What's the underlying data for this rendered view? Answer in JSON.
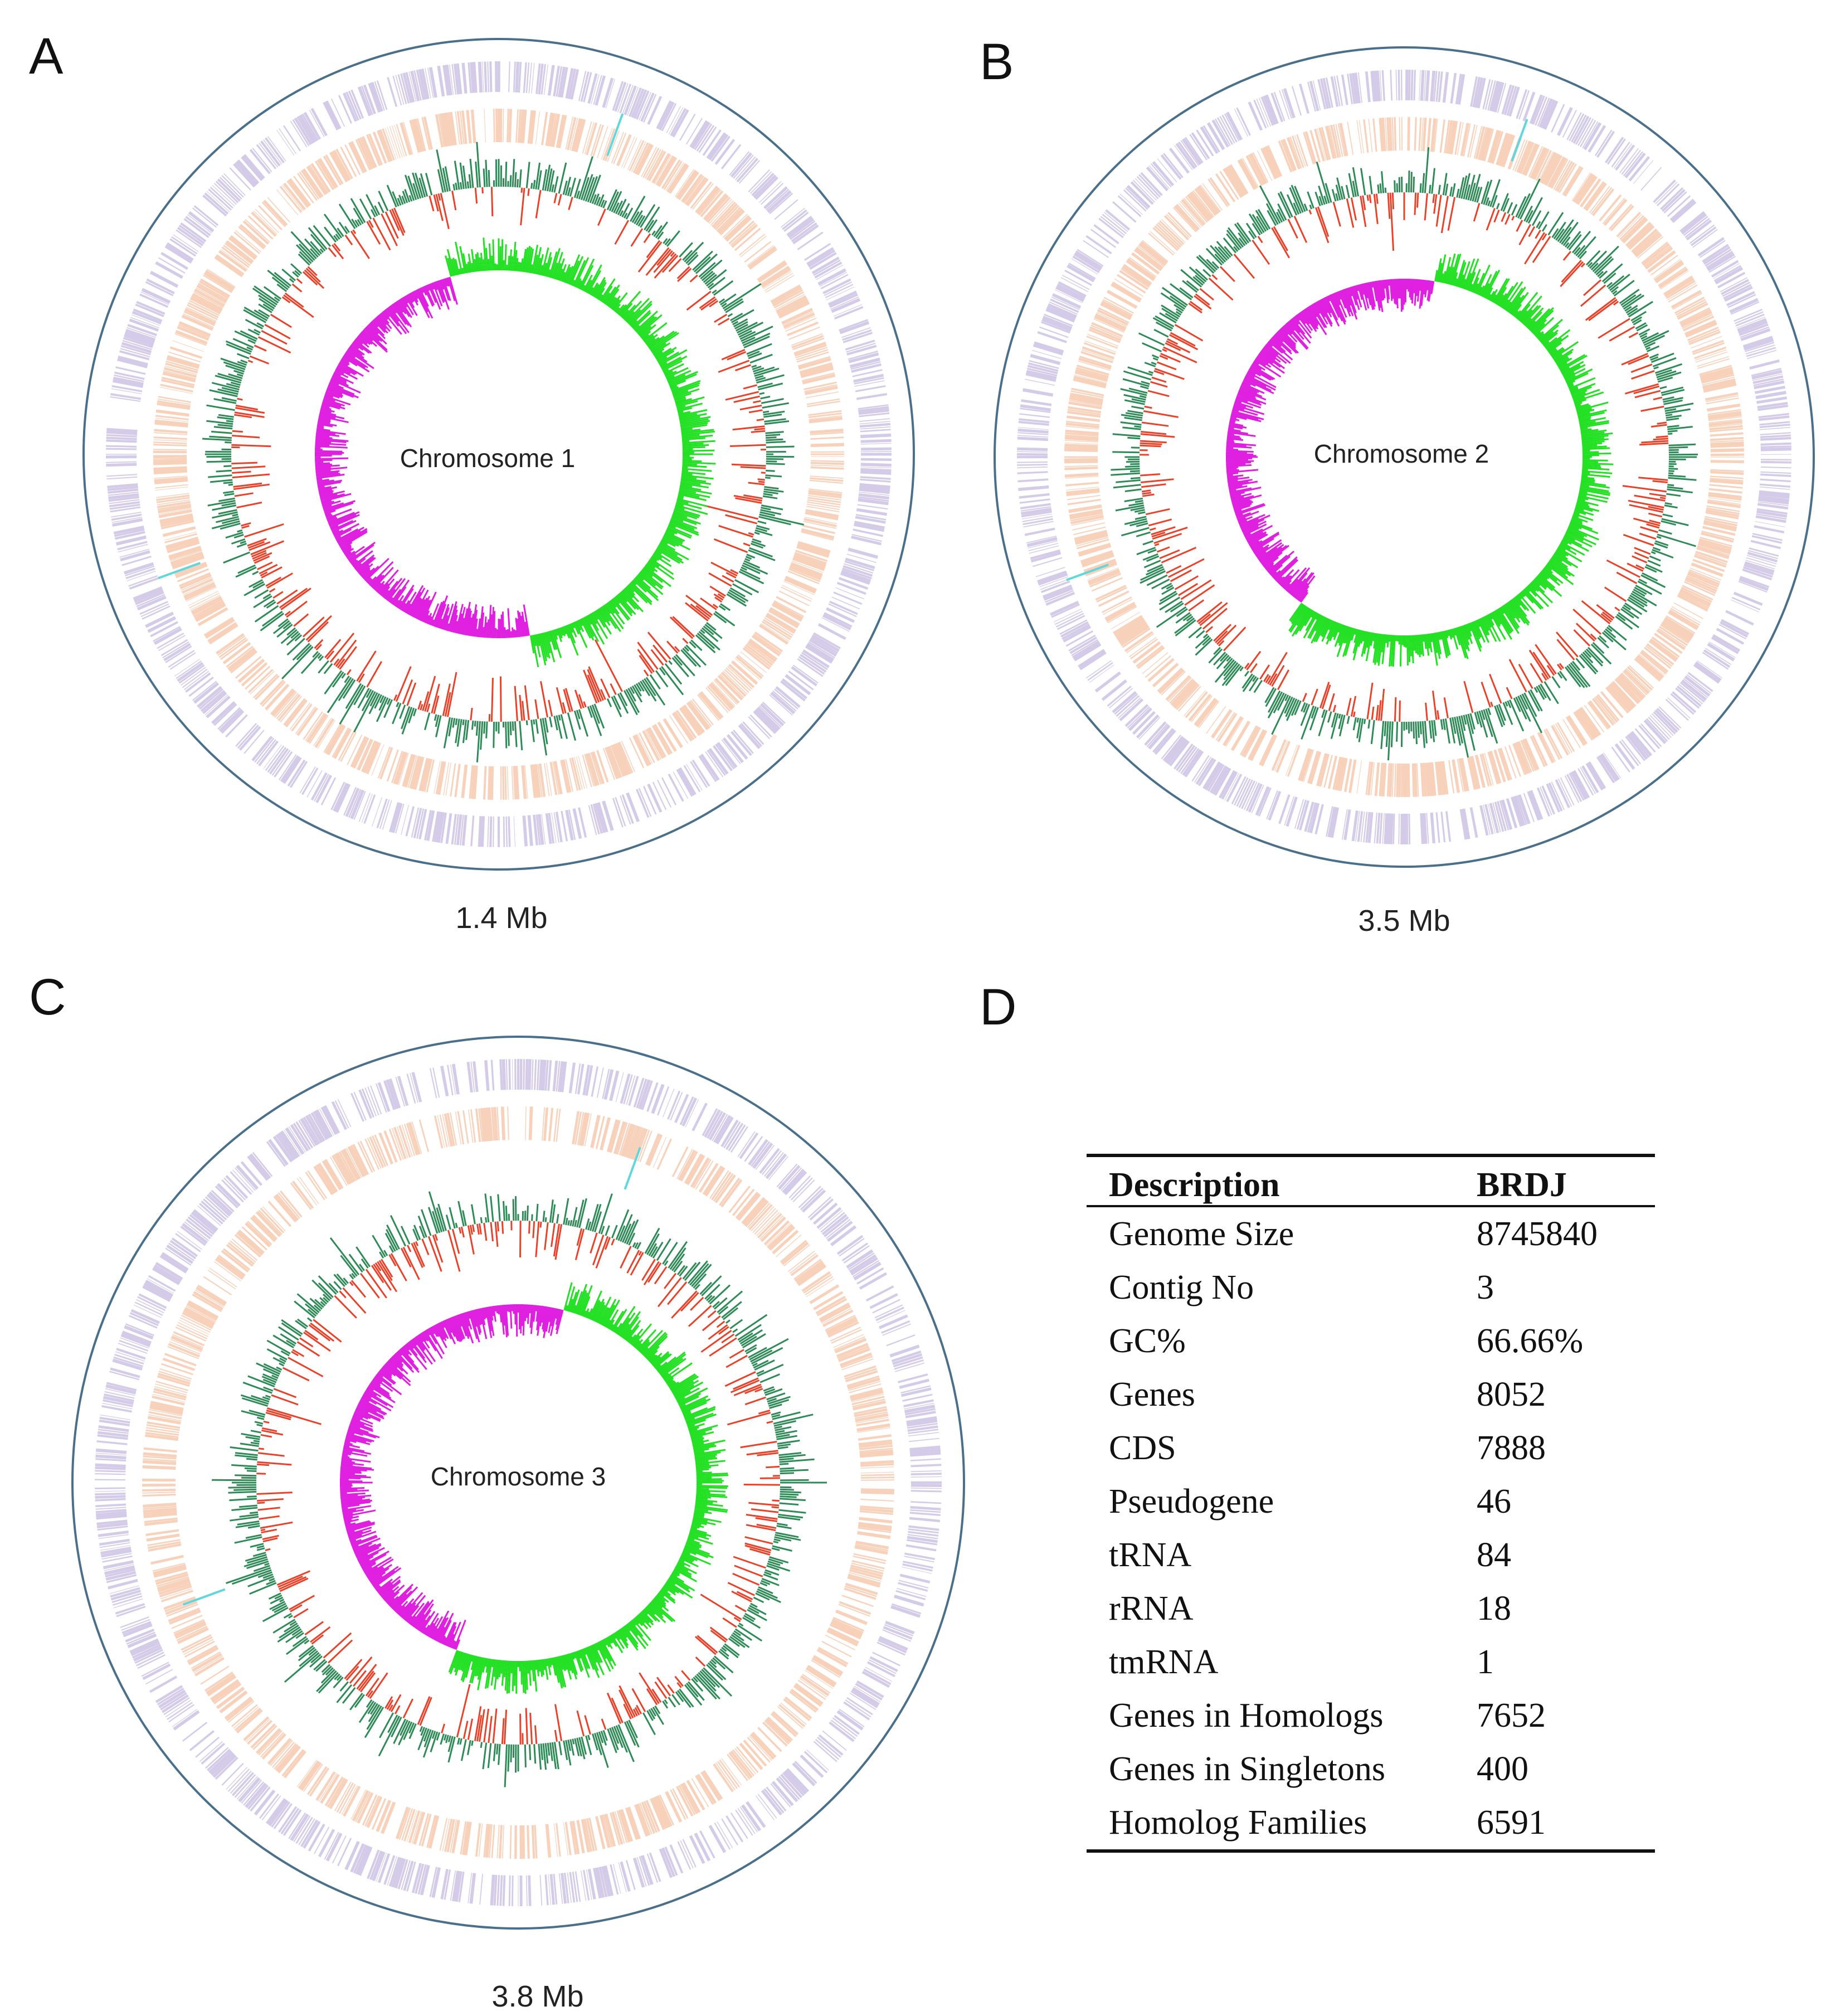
{
  "panels": [
    {
      "letter": "A",
      "label": "Chromosome 1",
      "size": "1.4 Mb"
    },
    {
      "letter": "B",
      "label": "Chromosome 2",
      "size": "3.5 Mb"
    },
    {
      "letter": "C",
      "label": "Chromosome 3",
      "size": "3.8 Mb"
    }
  ],
  "table": {
    "letter": "D",
    "headers": [
      "Description",
      "BRDJ"
    ],
    "rows": [
      [
        "Genome Size",
        "8745840"
      ],
      [
        "Contig No",
        "3"
      ],
      [
        "GC%",
        "66.66%"
      ],
      [
        "Genes",
        "8052"
      ],
      [
        "CDS",
        "7888"
      ],
      [
        "Pseudogene",
        "46"
      ],
      [
        "tRNA",
        "84"
      ],
      [
        "rRNA",
        "18"
      ],
      [
        "tmRNA",
        "1"
      ],
      [
        "Genes in Homologs",
        "7652"
      ],
      [
        "Genes in Singletons",
        "400"
      ],
      [
        "Homolog Families",
        "6591"
      ]
    ]
  },
  "colors": {
    "outer_ring": "#4a6f8a",
    "cds_forward": "#c9bfe2",
    "cds_reverse": "#f6c6aa",
    "gc_content_high": "#2e8b57",
    "gc_content_low": "#e8432a",
    "gc_skew_positive": "#22e022",
    "gc_skew_negative": "#e020e0",
    "rna_feature": "#5fd7dd"
  }
}
